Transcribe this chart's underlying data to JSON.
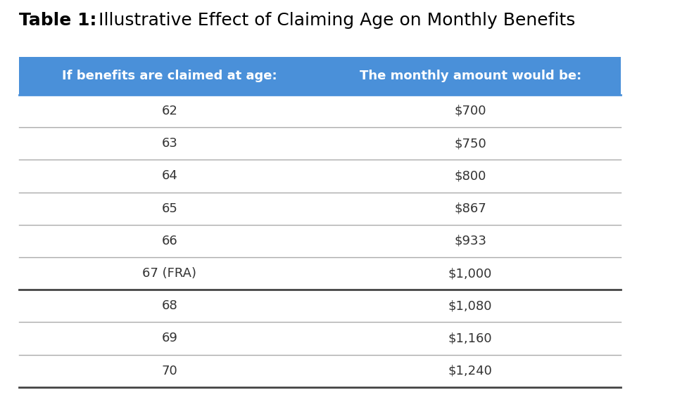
{
  "title_bold": "Table 1:",
  "title_regular": " Illustrative Effect of Claiming Age on Monthly Benefits",
  "header_col1": "If benefits are claimed at age:",
  "header_col2": "The monthly amount would be:",
  "rows": [
    [
      "62",
      "$700"
    ],
    [
      "63",
      "$750"
    ],
    [
      "64",
      "$800"
    ],
    [
      "65",
      "$867"
    ],
    [
      "66",
      "$933"
    ],
    [
      "67 (FRA)",
      "$1,000"
    ],
    [
      "68",
      "$1,080"
    ],
    [
      "69",
      "$1,160"
    ],
    [
      "70",
      "$1,240"
    ]
  ],
  "header_bg_color": "#4A90D9",
  "header_text_color": "#FFFFFF",
  "row_text_color": "#333333",
  "divider_color_normal": "#AAAAAA",
  "divider_color_bold": "#444444",
  "background_color": "#FFFFFF",
  "title_color": "#000000",
  "title_fontsize": 18,
  "header_fontsize": 13,
  "row_fontsize": 13,
  "fig_width": 9.59,
  "fig_height": 5.62
}
